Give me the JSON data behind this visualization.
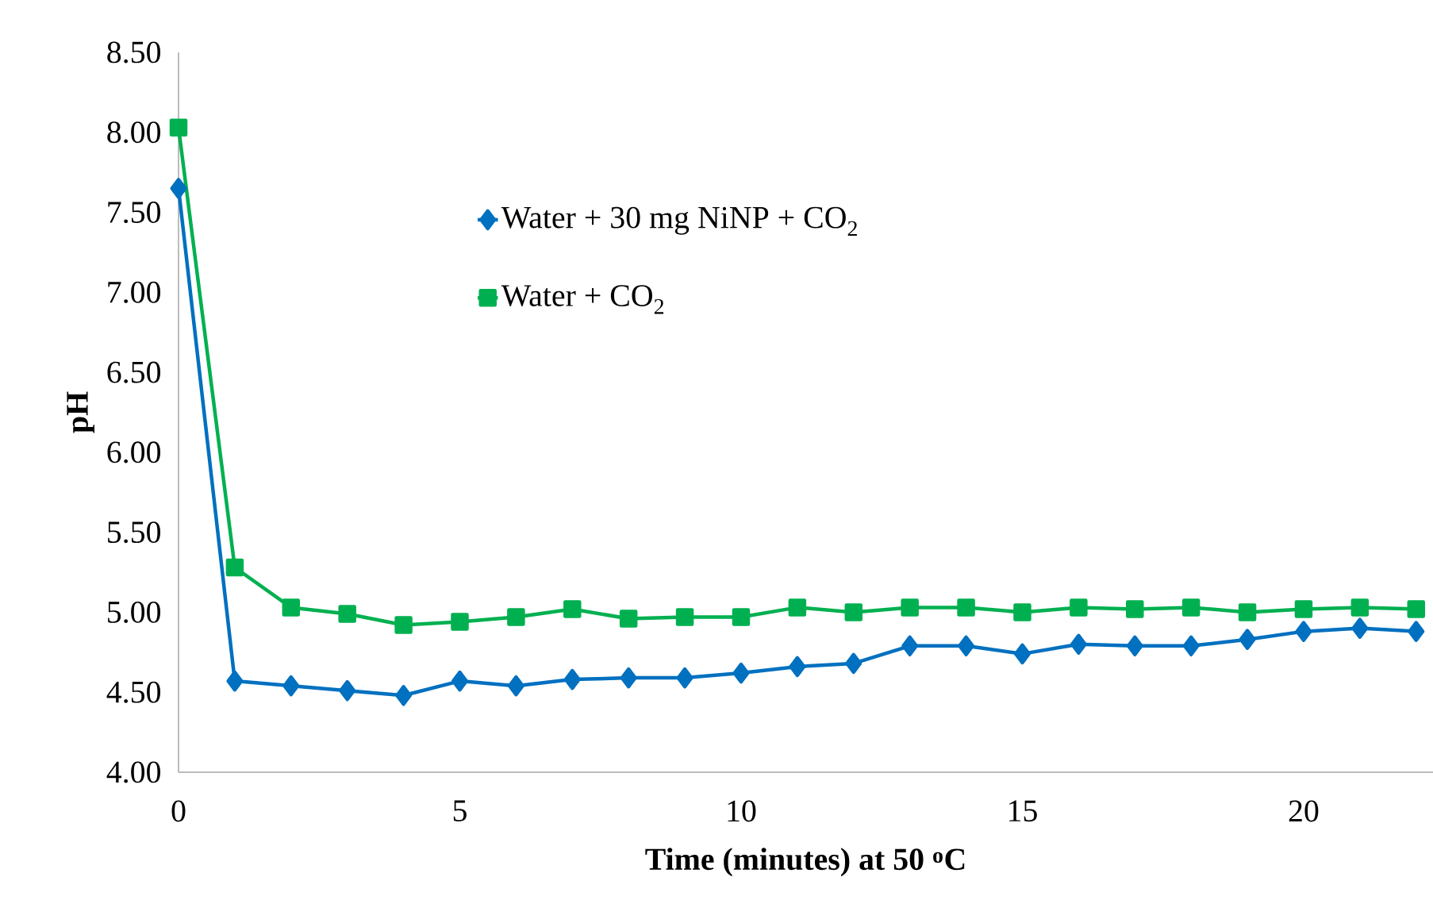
{
  "chart_data": {
    "type": "line",
    "xlabel": "Time (minutes)  at 50 $^{o}$C",
    "ylabel": "pH",
    "x": [
      0,
      1,
      2,
      3,
      4,
      5,
      6,
      7,
      8,
      9,
      10,
      11,
      12,
      13,
      14,
      15,
      16,
      17,
      18,
      19,
      20,
      21,
      22
    ],
    "series": [
      {
        "name": "Water + 30 mg NiNP + CO$_{2}$",
        "color": "#0070c0",
        "marker": "diamond",
        "values": [
          7.65,
          4.57,
          4.54,
          4.51,
          4.48,
          4.57,
          4.54,
          4.58,
          4.59,
          4.59,
          4.62,
          4.66,
          4.68,
          4.79,
          4.79,
          4.74,
          4.8,
          4.79,
          4.79,
          4.83,
          4.88,
          4.9,
          4.88
        ]
      },
      {
        "name": "Water + CO$_{2}$",
        "color": "#00b050",
        "marker": "square",
        "values": [
          8.03,
          5.28,
          5.03,
          4.99,
          4.92,
          4.94,
          4.97,
          5.02,
          4.96,
          4.97,
          4.97,
          5.03,
          5.0,
          5.03,
          5.03,
          5.0,
          5.03,
          5.02,
          5.03,
          5.0,
          5.02,
          5.03,
          5.02
        ]
      }
    ],
    "xlim": [
      0,
      22.3
    ],
    "xticks": [
      0,
      5,
      10,
      15,
      20
    ],
    "ylim": [
      4,
      8.5
    ],
    "yticks": [
      {
        "value": 4,
        "label": "4.00"
      },
      {
        "value": 4.5,
        "label": "4.50"
      },
      {
        "value": 5,
        "label": "5.00"
      },
      {
        "value": 5.5,
        "label": "5.50"
      },
      {
        "value": 6,
        "label": "6.00"
      },
      {
        "value": 6.5,
        "label": "6.50"
      },
      {
        "value": 7,
        "label": "7.00"
      },
      {
        "value": 7.5,
        "label": "7.50"
      },
      {
        "value": 8,
        "label": "8.00"
      },
      {
        "value": 8.5,
        "label": "8.50"
      }
    ],
    "grid": false,
    "legend": "top",
    "line_style": "solid"
  }
}
